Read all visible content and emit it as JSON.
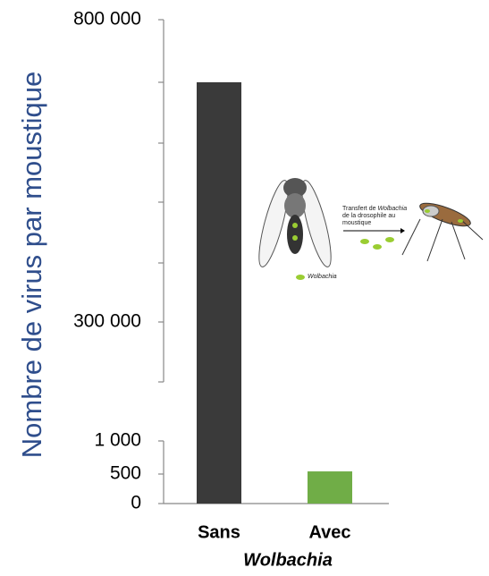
{
  "chart_data": {
    "type": "bar",
    "y_label": "Nombre de virus par moustique",
    "x_label": "Wolbachia",
    "categories": [
      "Sans",
      "Avec"
    ],
    "values": [
      700000,
      540
    ],
    "colors": [
      "#3a3a3a",
      "#70ad47"
    ],
    "ylim": [
      0,
      800000
    ],
    "yticks": [
      0,
      500,
      {
        "value": 1000,
        "label": "1 000"
      },
      {
        "value": 200000,
        "label": null
      },
      {
        "value": 300000,
        "label": "300 000"
      },
      {
        "value": 400000,
        "label": null
      },
      {
        "value": 500000,
        "label": null
      },
      {
        "value": 600000,
        "label": null
      },
      {
        "value": 700000,
        "label": null
      },
      {
        "value": 800000,
        "label": "800 000"
      }
    ],
    "annotations": {
      "transfer": [
        "Transfert de ",
        "Wolbachia",
        " de la drosophile au moustique"
      ],
      "legend": "Wolbachia"
    }
  }
}
